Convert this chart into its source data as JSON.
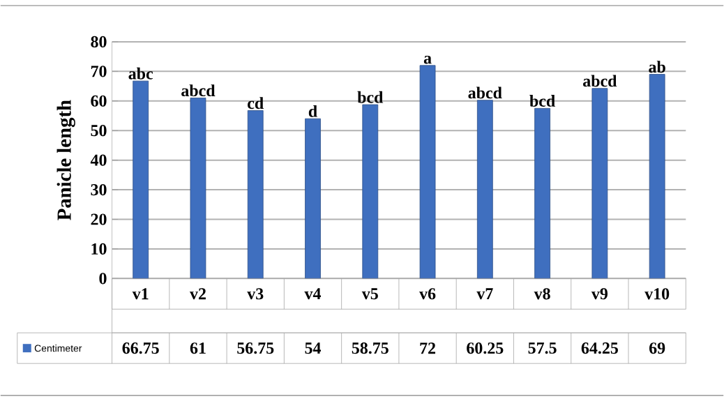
{
  "chart_data": {
    "type": "bar",
    "ylabel": "Panicle length",
    "categories": [
      "v1",
      "v2",
      "v3",
      "v4",
      "v5",
      "v6",
      "v7",
      "v8",
      "v9",
      "v10"
    ],
    "series": [
      {
        "name": "Centimeter",
        "color": "#3f6fbf",
        "values": [
          66.75,
          61,
          56.75,
          54,
          58.75,
          72,
          60.25,
          57.5,
          64.25,
          69
        ]
      }
    ],
    "ylim": [
      0,
      80
    ],
    "yticks": [
      0,
      10,
      20,
      30,
      40,
      50,
      60,
      70,
      80
    ],
    "grid": "y",
    "data_labels": true,
    "legend": "bottom",
    "annotations": [
      {
        "text": "abc",
        "x": "v1",
        "y": 66.75
      },
      {
        "text": "abcd",
        "x": "v2",
        "y": 61
      },
      {
        "text": "cd",
        "x": "v3",
        "y": 56.75
      },
      {
        "text": "d",
        "x": "v4",
        "y": 54
      },
      {
        "text": "bcd",
        "x": "v5",
        "y": 58.75
      },
      {
        "text": "a",
        "x": "v6",
        "y": 72
      },
      {
        "text": "abcd",
        "x": "v7",
        "y": 60.25
      },
      {
        "text": "bcd",
        "x": "v8",
        "y": 57.5
      },
      {
        "text": "abcd",
        "x": "v9",
        "y": 64.25
      },
      {
        "text": "ab",
        "x": "v10",
        "y": 69
      }
    ]
  }
}
